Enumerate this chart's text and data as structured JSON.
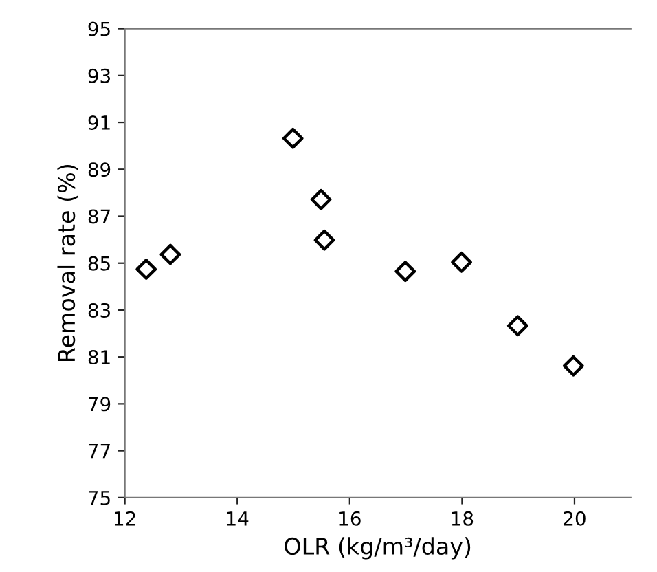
{
  "chart_data": {
    "type": "scatter",
    "xlabel": "OLR (kg/m³/day)",
    "ylabel": "Removal rate (%)",
    "x": [
      12.38,
      12.81,
      14.99,
      15.49,
      15.55,
      16.99,
      17.99,
      18.99,
      19.98
    ],
    "series": [
      {
        "color": "#000000",
        "values": [
          84.74,
          85.37,
          90.32,
          87.71,
          85.98,
          84.65,
          85.04,
          82.33,
          80.62
        ]
      }
    ],
    "marker": "diamond",
    "xlim": [
      12,
      21
    ],
    "ylim": [
      75,
      95
    ],
    "xticks": [
      12,
      14,
      16,
      18,
      20
    ],
    "yticks": [
      75,
      77,
      79,
      81,
      83,
      85,
      87,
      89,
      91,
      93,
      95
    ],
    "grid": false,
    "legend": false
  }
}
